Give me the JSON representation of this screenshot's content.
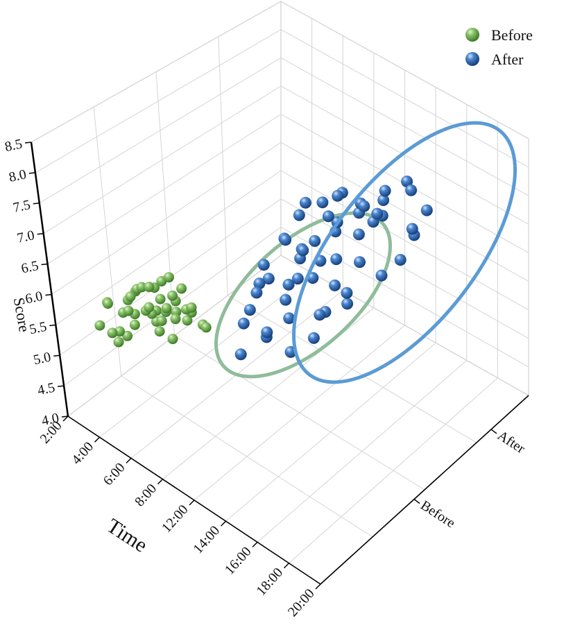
{
  "chart_data": {
    "type": "scatter",
    "projection": "3d",
    "grid": true,
    "legend_position": "top-right",
    "zlabel": "Score",
    "xlabel": "Time",
    "ylabel": "",
    "zlim": [
      4.0,
      8.5
    ],
    "z_ticks": [
      "4.0",
      "4.5",
      "5.0",
      "5.5",
      "6.0",
      "6.5",
      "7.0",
      "7.5",
      "8.0",
      "8.5"
    ],
    "x_ticks": [
      "2:00",
      "4:00",
      "6:00",
      "8:00",
      "12:00",
      "14:00",
      "16:00",
      "18:00",
      "20:00"
    ],
    "y_ticks": [
      "Before",
      "After"
    ],
    "series": [
      {
        "name": "Before",
        "color": "#6aa84f",
        "ellipse_color": "#8fbc9a",
        "points": [
          [
            1.5,
            0.45,
            5.0
          ],
          [
            1.8,
            0.2,
            5.6
          ],
          [
            1.3,
            0.6,
            4.9
          ],
          [
            2.2,
            0.5,
            5.4
          ],
          [
            2.6,
            0.3,
            5.9
          ],
          [
            2.9,
            0.55,
            5.7
          ],
          [
            3.1,
            0.25,
            6.1
          ],
          [
            3.4,
            0.6,
            5.8
          ],
          [
            3.7,
            0.35,
            6.2
          ],
          [
            4.0,
            0.5,
            5.6
          ],
          [
            2.4,
            0.7,
            5.3
          ],
          [
            3.0,
            0.8,
            5.5
          ],
          [
            3.6,
            0.15,
            6.5
          ],
          [
            4.3,
            0.3,
            6.0
          ],
          [
            4.1,
            0.65,
            6.3
          ],
          [
            3.3,
            0.4,
            6.0
          ],
          [
            2.8,
            0.1,
            6.3
          ],
          [
            3.9,
            0.2,
            6.7
          ],
          [
            4.5,
            0.45,
            6.1
          ],
          [
            4.6,
            0.1,
            7.0
          ],
          [
            4.8,
            0.3,
            6.5
          ],
          [
            5.0,
            0.2,
            6.8
          ],
          [
            5.2,
            0.05,
            7.2
          ],
          [
            4.9,
            0.55,
            6.2
          ],
          [
            3.5,
            0.7,
            5.9
          ],
          [
            2.0,
            0.6,
            5.8
          ],
          [
            2.5,
            0.45,
            5.7
          ],
          [
            1.7,
            0.35,
            5.3
          ],
          [
            1.4,
            0.5,
            5.1
          ],
          [
            3.2,
            0.55,
            6.2
          ],
          [
            4.4,
            0.6,
            5.9
          ],
          [
            5.4,
            0.25,
            6.9
          ],
          [
            5.6,
            0.4,
            6.6
          ],
          [
            5.8,
            0.15,
            7.4
          ],
          [
            5.1,
            0.45,
            6.4
          ],
          [
            4.2,
            0.05,
            6.8
          ],
          [
            3.8,
            0.45,
            5.9
          ],
          [
            2.7,
            0.65,
            5.6
          ],
          [
            2.1,
            0.25,
            6.0
          ],
          [
            3.6,
            0.55,
            6.4
          ],
          [
            4.7,
            0.7,
            5.8
          ],
          [
            5.3,
            0.6,
            6.0
          ]
        ]
      },
      {
        "name": "After",
        "color": "#2e6bb5",
        "ellipse_color": "#5b9bd5",
        "points": [
          [
            5.5,
            0.9,
            5.3
          ],
          [
            6.0,
            1.1,
            5.5
          ],
          [
            6.2,
            1.3,
            5.1
          ],
          [
            6.5,
            1.0,
            5.8
          ],
          [
            6.8,
            1.2,
            5.9
          ],
          [
            7.0,
            1.5,
            5.7
          ],
          [
            6.3,
            0.8,
            6.1
          ],
          [
            6.6,
            1.4,
            6.3
          ],
          [
            7.2,
            1.1,
            6.4
          ],
          [
            7.5,
            1.6,
            6.2
          ],
          [
            7.8,
            1.3,
            6.7
          ],
          [
            8.0,
            1.8,
            6.5
          ],
          [
            8.2,
            1.5,
            6.9
          ],
          [
            7.4,
            0.9,
            7.0
          ],
          [
            7.9,
            1.2,
            7.3
          ],
          [
            8.4,
            1.1,
            7.5
          ],
          [
            8.6,
            1.7,
            7.2
          ],
          [
            8.8,
            1.4,
            7.6
          ],
          [
            9.0,
            1.9,
            7.4
          ],
          [
            9.2,
            1.6,
            7.8
          ],
          [
            9.4,
            1.3,
            8.0
          ],
          [
            9.6,
            1.8,
            7.9
          ],
          [
            9.8,
            1.5,
            8.2
          ],
          [
            10.0,
            2.0,
            8.1
          ],
          [
            10.2,
            1.7,
            8.3
          ],
          [
            10.4,
            1.4,
            8.4
          ],
          [
            10.6,
            1.9,
            8.2
          ],
          [
            8.5,
            0.9,
            7.9
          ],
          [
            8.9,
            1.0,
            8.3
          ],
          [
            9.3,
            1.0,
            8.6
          ],
          [
            7.6,
            1.7,
            6.0
          ],
          [
            8.1,
            2.0,
            6.1
          ],
          [
            8.7,
            2.1,
            6.4
          ],
          [
            9.1,
            2.2,
            6.8
          ],
          [
            9.5,
            2.1,
            7.1
          ],
          [
            9.9,
            2.2,
            7.4
          ],
          [
            6.9,
            0.9,
            6.8
          ],
          [
            7.3,
            1.3,
            6.9
          ],
          [
            7.7,
            0.8,
            7.4
          ],
          [
            8.3,
            1.3,
            7.1
          ],
          [
            9.7,
            1.1,
            8.6
          ],
          [
            10.3,
            1.2,
            8.8
          ],
          [
            6.1,
            1.6,
            5.0
          ],
          [
            6.4,
            1.7,
            5.4
          ],
          [
            7.1,
            1.8,
            5.6
          ],
          [
            5.8,
            1.0,
            6.0
          ],
          [
            6.7,
            0.9,
            6.6
          ],
          [
            8.0,
            1.0,
            7.7
          ],
          [
            9.0,
            1.3,
            8.0
          ],
          [
            10.1,
            1.6,
            8.0
          ],
          [
            7.0,
            1.2,
            6.5
          ],
          [
            8.6,
            1.2,
            7.6
          ],
          [
            9.4,
            1.7,
            7.6
          ],
          [
            10.5,
            1.1,
            8.9
          ]
        ]
      }
    ]
  }
}
